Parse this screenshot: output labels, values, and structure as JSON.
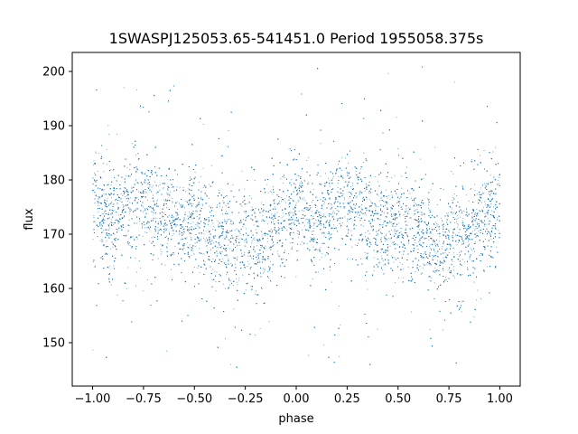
{
  "chart_data": {
    "type": "scatter",
    "title": "1SWASPJ125053.65-541451.0 Period 1955058.375s",
    "xlabel": "phase",
    "ylabel": "flux",
    "xlim": [
      -1.1,
      1.1
    ],
    "ylim": [
      142,
      203.5
    ],
    "x_ticks": [
      -1.0,
      -0.75,
      -0.5,
      -0.25,
      0.0,
      0.25,
      0.5,
      0.75,
      1.0
    ],
    "x_tick_labels": [
      "−1.00",
      "−0.75",
      "−0.50",
      "−0.25",
      "0.00",
      "0.25",
      "0.50",
      "0.75",
      "1.00"
    ],
    "y_ticks": [
      150,
      160,
      170,
      180,
      190,
      200
    ],
    "y_tick_labels": [
      "150",
      "160",
      "170",
      "180",
      "190",
      "200"
    ],
    "grid": false,
    "legend": "none",
    "point_color": "#1f77b4",
    "series": [
      {
        "x_range": [
          -1.0,
          1.0
        ],
        "profile_x": [
          -1.0,
          -0.97,
          -0.93,
          -0.88,
          -0.83,
          -0.78,
          -0.72,
          -0.65,
          -0.58,
          -0.52,
          -0.45,
          -0.38,
          -0.32,
          -0.28,
          -0.22,
          -0.18,
          -0.12,
          -0.06,
          0.0,
          0.03,
          0.07,
          0.12,
          0.17,
          0.22,
          0.28,
          0.35,
          0.42,
          0.48,
          0.55,
          0.62,
          0.68,
          0.72,
          0.78,
          0.82,
          0.88,
          0.94,
          1.0
        ],
        "profile_y": [
          176,
          175,
          172,
          173,
          175,
          176,
          175,
          173,
          172,
          172,
          171,
          170,
          168,
          167,
          170,
          168,
          171,
          173,
          176,
          175,
          172,
          173,
          175,
          176,
          175,
          173,
          172,
          172,
          171,
          170,
          168,
          167,
          170,
          168,
          171,
          173,
          176
        ],
        "scatter_sd": 4.5,
        "outlier_range": [
          145,
          201
        ],
        "n_points": 14000
      }
    ]
  }
}
